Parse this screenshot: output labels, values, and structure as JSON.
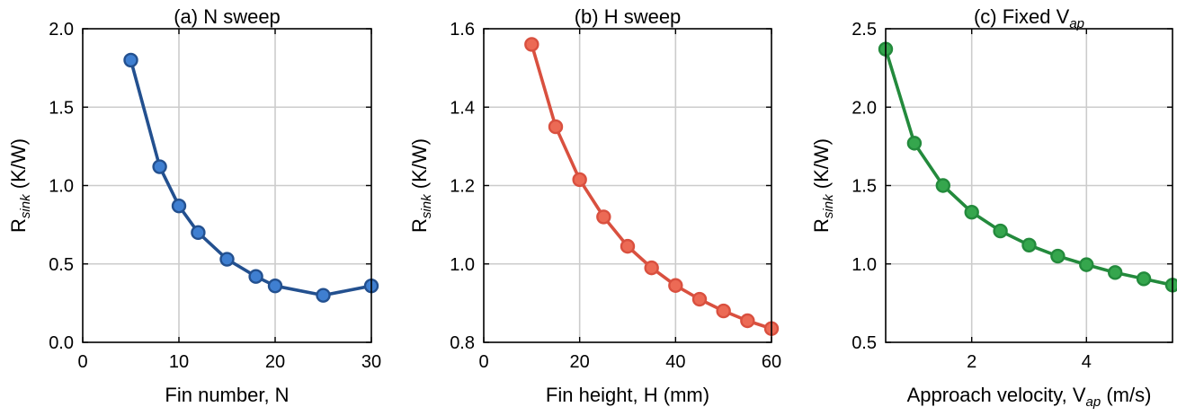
{
  "chart_data": [
    {
      "type": "line",
      "title": "(a) N sweep",
      "xlabel": "Fin number, N",
      "ylabel": "R_sink (K/W)",
      "xlim": [
        0,
        30
      ],
      "ylim": [
        0.0,
        2.0
      ],
      "xticks": [
        0,
        10,
        20,
        30
      ],
      "yticks": [
        0.0,
        0.5,
        1.0,
        1.5,
        2.0
      ],
      "xtick_labels": [
        "0",
        "10",
        "20",
        "30"
      ],
      "ytick_labels": [
        "0.0",
        "0.5",
        "1.0",
        "1.5",
        "2.0"
      ],
      "grid": true,
      "line_color": "#23508f",
      "marker_fill": "#3f7fd1",
      "series": [
        {
          "x": [
            5,
            8,
            10,
            12,
            15,
            18,
            20,
            25,
            30
          ],
          "y": [
            1.8,
            1.12,
            0.87,
            0.7,
            0.53,
            0.42,
            0.36,
            0.3,
            0.36
          ]
        }
      ]
    },
    {
      "type": "line",
      "title": "(b) H sweep",
      "xlabel": "Fin height, H (mm)",
      "ylabel": "R_sink (K/W)",
      "xlim": [
        0,
        60
      ],
      "ylim": [
        0.8,
        1.6
      ],
      "xticks": [
        0,
        20,
        40,
        60
      ],
      "yticks": [
        0.8,
        1.0,
        1.2,
        1.4,
        1.6
      ],
      "xtick_labels": [
        "0",
        "20",
        "40",
        "60"
      ],
      "ytick_labels": [
        "0.8",
        "1.0",
        "1.2",
        "1.4",
        "1.6"
      ],
      "grid": true,
      "line_color": "#d9503f",
      "marker_fill": "#ec6a55",
      "series": [
        {
          "x": [
            10,
            15,
            20,
            25,
            30,
            35,
            40,
            45,
            50,
            55,
            60
          ],
          "y": [
            1.56,
            1.35,
            1.215,
            1.12,
            1.045,
            0.99,
            0.945,
            0.91,
            0.88,
            0.855,
            0.835
          ]
        }
      ]
    },
    {
      "type": "line",
      "title": "(c) Fixed V_ap",
      "xlabel": "Approach velocity, V_ap (m/s)",
      "ylabel": "R_sink (K/W)",
      "xlim": [
        0.5,
        5.5
      ],
      "ylim": [
        0.5,
        2.5
      ],
      "xticks": [
        2,
        4
      ],
      "yticks": [
        0.5,
        1.0,
        1.5,
        2.0,
        2.5
      ],
      "xtick_labels": [
        "2",
        "4"
      ],
      "ytick_labels": [
        "0.5",
        "1.0",
        "1.5",
        "2.0",
        "2.5"
      ],
      "grid": true,
      "line_color": "#238a3c",
      "marker_fill": "#35a64d",
      "series": [
        {
          "x": [
            0.5,
            1.0,
            1.5,
            2.0,
            2.5,
            3.0,
            3.5,
            4.0,
            4.5,
            5.0,
            5.5
          ],
          "y": [
            2.37,
            1.77,
            1.5,
            1.33,
            1.21,
            1.12,
            1.05,
            0.995,
            0.945,
            0.905,
            0.865
          ]
        }
      ]
    }
  ]
}
